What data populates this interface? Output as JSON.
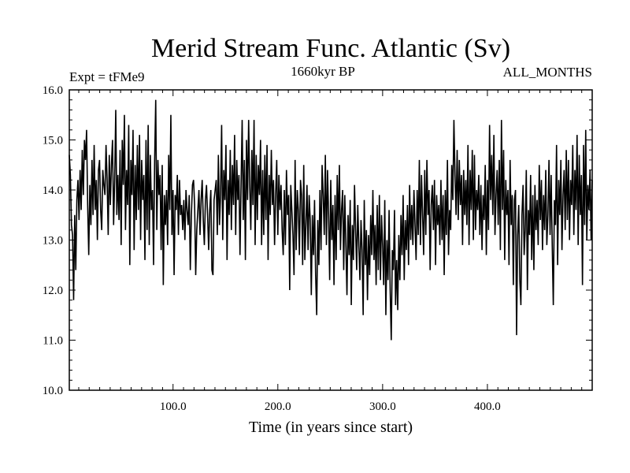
{
  "chart_data": {
    "type": "line",
    "title": "Merid Stream Func. Atlantic (Sv)",
    "subtitle": "1660kyr BP",
    "annotation_left": "Expt = tFMe9",
    "annotation_right": "ALL_MONTHS",
    "xlabel": "Time (in years since start)",
    "ylabel": "",
    "xlim": [
      1,
      500
    ],
    "ylim": [
      10.0,
      16.0
    ],
    "x_ticks": [
      100,
      200,
      300,
      400
    ],
    "x_tick_labels": [
      "100.0",
      "200.0",
      "300.0",
      "400.0"
    ],
    "y_ticks": [
      10,
      11,
      12,
      13,
      14,
      15,
      16
    ],
    "y_tick_labels": [
      "10.0",
      "11.0",
      "12.0",
      "13.0",
      "14.0",
      "15.0",
      "16.0"
    ],
    "grid": false,
    "legend": "none",
    "series": [
      {
        "name": "Merid Stream Func. Atlantic",
        "x_start": 1,
        "x_step": 1,
        "values": [
          14.7,
          14.3,
          13.3,
          13.1,
          11.8,
          13.5,
          12.4,
          13.8,
          14.2,
          13.4,
          14.4,
          13.6,
          14.8,
          13.9,
          15.0,
          14.6,
          15.2,
          13.7,
          12.7,
          14.1,
          13.3,
          14.6,
          13.5,
          14.9,
          13.6,
          14.2,
          13.0,
          14.4,
          14.6,
          13.6,
          13.2,
          14.4,
          14.1,
          13.9,
          14.9,
          14.2,
          13.1,
          14.7,
          13.7,
          14.5,
          15.0,
          13.3,
          14.2,
          15.6,
          13.5,
          14.3,
          13.4,
          14.8,
          12.9,
          15.0,
          14.1,
          15.5,
          13.2,
          14.4,
          13.7,
          15.3,
          12.5,
          14.6,
          13.9,
          15.2,
          12.8,
          14.5,
          13.4,
          14.9,
          13.6,
          15.1,
          13.0,
          14.6,
          13.8,
          14.3,
          12.6,
          15.0,
          13.2,
          15.3,
          12.9,
          14.7,
          13.6,
          14.0,
          12.5,
          14.6,
          15.8,
          13.2,
          14.6,
          13.9,
          14.3,
          12.8,
          14.5,
          12.1,
          13.9,
          13.3,
          14.0,
          12.9,
          14.7,
          13.6,
          15.5,
          13.1,
          14.0,
          12.3,
          13.9,
          13.6,
          14.3,
          13.1,
          14.2,
          13.5,
          13.7,
          13.2,
          13.8,
          13.0,
          14.0,
          13.6,
          13.3,
          13.9,
          12.4,
          13.5,
          14.1,
          14.2,
          13.7,
          12.3,
          13.2,
          13.6,
          14.0,
          13.1,
          13.8,
          14.2,
          13.4,
          12.9,
          13.8,
          14.1,
          13.5,
          12.8,
          13.6,
          14.0,
          12.4,
          12.3,
          13.8,
          14.0,
          14.2,
          13.1,
          14.7,
          13.3,
          13.9,
          15.3,
          13.0,
          14.4,
          13.8,
          14.9,
          12.6,
          14.2,
          13.5,
          14.8,
          13.2,
          14.5,
          13.7,
          15.1,
          13.1,
          14.6,
          13.8,
          14.3,
          12.7,
          14.1,
          15.4,
          13.4,
          14.6,
          12.6,
          15.0,
          13.8,
          15.4,
          14.1,
          13.2,
          14.8,
          13.7,
          15.4,
          12.9,
          14.7,
          13.4,
          14.5,
          13.9,
          15.0,
          12.9,
          14.4,
          13.1,
          14.7,
          13.4,
          14.9,
          12.6,
          14.3,
          13.5,
          14.8,
          13.7,
          14.2,
          12.9,
          13.9,
          14.6,
          13.1,
          14.3,
          13.6,
          14.1,
          13.2,
          12.7,
          14.0,
          12.9,
          14.4,
          13.5,
          13.9,
          12.0,
          14.1,
          13.6,
          13.1,
          12.3,
          14.6,
          12.8,
          14.0,
          13.6,
          12.7,
          14.2,
          13.9,
          12.5,
          14.5,
          12.6,
          13.3,
          14.1,
          12.8,
          13.9,
          13.4,
          11.9,
          13.5,
          12.7,
          13.8,
          12.3,
          11.5,
          13.4,
          12.5,
          14.0,
          12.8,
          14.5,
          13.9,
          13.1,
          14.7,
          12.9,
          14.4,
          13.5,
          12.2,
          14.2,
          13.0,
          13.7,
          12.1,
          13.9,
          12.6,
          14.3,
          13.2,
          14.5,
          12.8,
          13.6,
          14.0,
          12.4,
          13.9,
          12.9,
          11.9,
          13.5,
          12.7,
          13.8,
          11.7,
          13.3,
          12.6,
          14.1,
          13.2,
          12.4,
          13.7,
          12.9,
          12.2,
          13.4,
          12.8,
          11.5,
          13.8,
          12.5,
          13.2,
          11.8,
          13.1,
          12.3,
          13.5,
          12.7,
          14.0,
          12.6,
          13.3,
          12.1,
          13.7,
          12.4,
          13.9,
          12.2,
          13.5,
          12.9,
          12.1,
          13.8,
          11.5,
          13.0,
          12.2,
          13.6,
          12.0,
          11.0,
          12.8,
          12.4,
          13.6,
          11.7,
          12.6,
          11.6,
          13.1,
          12.2,
          13.5,
          12.7,
          13.9,
          12.2,
          13.4,
          12.8,
          13.7,
          12.5,
          14.1,
          13.0,
          13.7,
          12.9,
          14.0,
          13.3,
          12.6,
          14.0,
          13.1,
          14.6,
          12.9,
          14.3,
          13.5,
          12.7,
          14.4,
          13.1,
          14.6,
          13.5,
          14.0,
          12.4,
          13.7,
          14.1,
          13.2,
          14.2,
          12.5,
          13.9,
          13.3,
          13.7,
          12.9,
          14.2,
          13.0,
          13.9,
          12.3,
          14.0,
          13.1,
          14.6,
          12.7,
          13.6,
          13.2,
          14.5,
          13.8,
          15.4,
          14.3,
          13.5,
          14.8,
          13.4,
          14.6,
          13.7,
          14.3,
          12.9,
          14.4,
          13.5,
          14.2,
          13.3,
          14.9,
          12.9,
          14.4,
          13.6,
          14.8,
          13.0,
          14.7,
          13.2,
          14.0,
          13.6,
          14.3,
          13.1,
          14.1,
          12.8,
          13.9,
          13.4,
          14.5,
          12.7,
          14.2,
          13.2,
          15.3,
          13.8,
          14.7,
          13.5,
          15.1,
          13.1,
          13.9,
          14.4,
          13.3,
          14.6,
          12.8,
          15.4,
          13.6,
          14.8,
          12.6,
          14.2,
          13.5,
          14.0,
          12.5,
          14.6,
          13.3,
          13.9,
          12.1,
          13.8,
          14.0,
          11.1,
          13.1,
          13.7,
          12.2,
          11.7,
          13.5,
          14.1,
          12.7,
          13.2,
          14.4,
          12.0,
          13.6,
          13.1,
          14.3,
          12.6,
          13.9,
          12.4,
          14.1,
          13.2,
          13.8,
          12.9,
          14.5,
          13.4,
          14.2,
          12.8,
          13.9,
          13.2,
          14.4,
          12.9,
          13.5,
          14.6,
          13.1,
          14.3,
          12.9,
          11.7,
          13.8,
          13.3,
          14.9,
          12.5,
          14.2,
          13.5,
          14.6,
          12.8,
          13.9,
          14.4,
          13.2,
          14.8,
          13.4,
          14.6,
          13.0,
          14.2,
          13.7,
          14.9,
          13.1,
          14.4,
          13.6,
          15.1,
          12.9,
          14.7,
          13.5,
          14.3,
          12.1,
          14.9,
          13.3,
          15.2,
          13.0,
          14.1,
          13.6,
          14.4,
          13.0,
          14.2
        ]
      }
    ]
  }
}
